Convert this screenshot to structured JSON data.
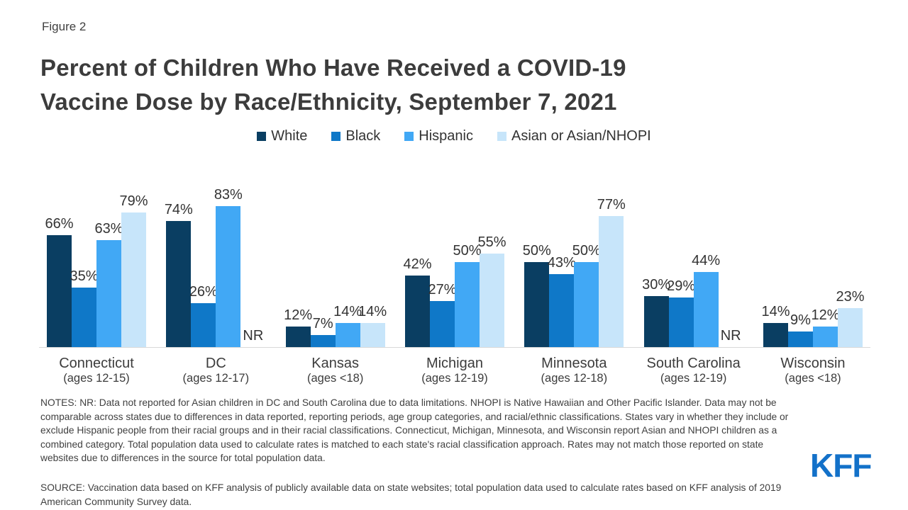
{
  "figure_label": "Figure 2",
  "title": {
    "line1": "Percent of Children Who Have Received a COVID-19",
    "line2": "Vaccine Dose by Race/Ethnicity, September 7, 2021"
  },
  "chart_data": {
    "type": "bar",
    "categories": [
      "Connecticut",
      "DC",
      "Kansas",
      "Michigan",
      "Minnesota",
      "South Carolina",
      "Wisconsin"
    ],
    "category_sublabels": [
      "(ages 12-15)",
      "(ages 12-17)",
      "(ages <18)",
      "(ages 12-19)",
      "(ages 12-18)",
      "(ages 12-19)",
      "(ages <18)"
    ],
    "series": [
      {
        "name": "White",
        "color": "#0a3e62",
        "values": [
          66,
          74,
          12,
          42,
          50,
          30,
          14
        ]
      },
      {
        "name": "Black",
        "color": "#0f78c8",
        "values": [
          35,
          26,
          7,
          27,
          43,
          29,
          9
        ]
      },
      {
        "name": "Hispanic",
        "color": "#41a8f5",
        "values": [
          63,
          83,
          14,
          50,
          50,
          44,
          12
        ]
      },
      {
        "name": "Asian or Asian/NHOPI",
        "color": "#c7e5fa",
        "values": [
          79,
          null,
          14,
          55,
          77,
          null,
          23
        ]
      }
    ],
    "value_suffix": "%",
    "not_reported_label": "NR",
    "ylim": [
      0,
      100
    ],
    "grid": false,
    "legend_position": "top"
  },
  "notes": "NOTES:  NR: Data not reported for Asian children in DC and South Carolina due to data limitations. NHOPI is Native Hawaiian and Other Pacific Islander. Data may not be comparable across states due to differences in data reported, reporting periods, age group categories, and racial/ethnic classifications. States vary in whether they include or exclude Hispanic people from their racial groups and in their racial classifications. Connecticut, Michigan, Minnesota, and Wisconsin report Asian and NHOPI children as a combined category. Total population data used to calculate rates is matched to each state's racial classification approach. Rates may not match those reported on state websites due to differences in the source for total population data.",
  "source": "SOURCE: Vaccination data based on KFF analysis of publicly available data on state websites; total population data used to calculate rates based on KFF analysis of 2019 American Community Survey data.",
  "logo_text": "KFF"
}
